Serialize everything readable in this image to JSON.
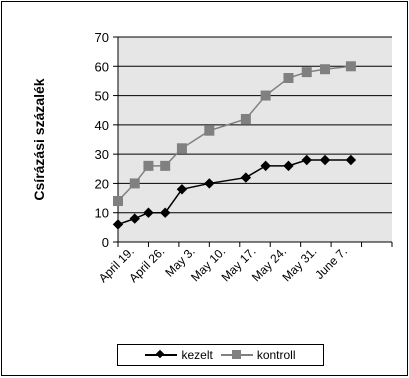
{
  "chart_data": {
    "type": "line",
    "ylabel": "Csírázási százalék",
    "ylim": [
      0,
      70
    ],
    "yticks": [
      0,
      10,
      20,
      30,
      40,
      50,
      60,
      70
    ],
    "xlim": [
      0,
      9
    ],
    "xtick_positions": [
      0,
      1,
      2,
      3,
      4,
      5,
      6,
      7,
      8,
      9
    ],
    "categories": [
      "April 19.",
      "April 26.",
      "May 3.",
      "May 10.",
      "May 17.",
      "May 24.",
      "May 31.",
      "June 7."
    ],
    "grid": true,
    "legend_position": "bottom",
    "series": [
      {
        "name": "kezelt",
        "marker": "diamond",
        "color": "#000000",
        "x": [
          0,
          0.55,
          1.0,
          1.55,
          2.1,
          3.0,
          4.2,
          4.85,
          5.6,
          6.2,
          6.8,
          7.65
        ],
        "values": [
          6,
          8,
          10,
          10,
          18,
          20,
          22,
          26,
          26,
          28,
          28,
          28
        ]
      },
      {
        "name": "kontroll",
        "marker": "square",
        "color": "#808080",
        "x": [
          0,
          0.55,
          1.0,
          1.55,
          2.1,
          3.0,
          4.2,
          4.85,
          5.6,
          6.2,
          6.8,
          7.65
        ],
        "values": [
          14,
          20,
          26,
          26,
          32,
          38,
          42,
          50,
          56,
          58,
          59,
          60
        ]
      }
    ]
  }
}
